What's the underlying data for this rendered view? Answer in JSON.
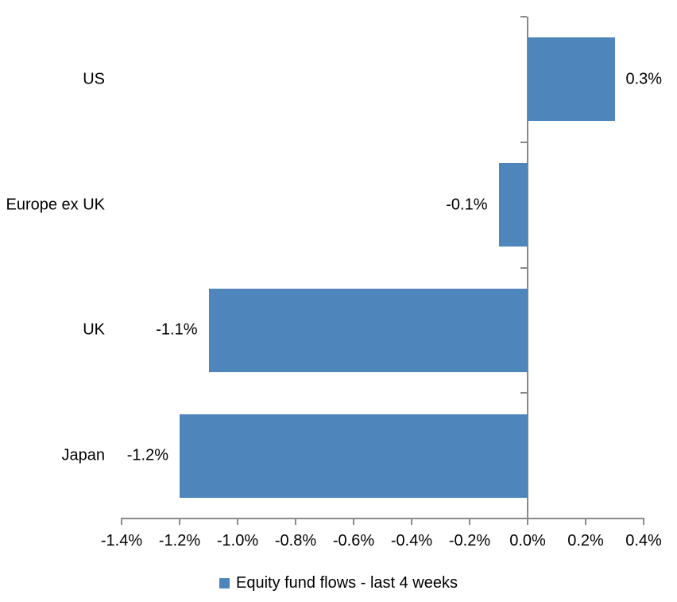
{
  "chart_data": {
    "type": "bar",
    "orientation": "horizontal",
    "title": "",
    "categories": [
      "US",
      "Europe ex UK",
      "UK",
      "Japan"
    ],
    "values": [
      0.3,
      -0.1,
      -1.1,
      -1.2
    ],
    "data_labels": [
      "0.3%",
      "-0.1%",
      "-1.1%",
      "-1.2%"
    ],
    "series_name": "Equity fund flows - last 4 weeks",
    "xlabel": "",
    "ylabel": "",
    "xlim": [
      -1.4,
      0.4
    ],
    "x_tick_step": 0.2,
    "x_tick_labels": [
      "-1.4%",
      "-1.2%",
      "-1.0%",
      "-0.8%",
      "-0.6%",
      "-0.4%",
      "-0.2%",
      "0.0%",
      "0.2%",
      "0.4%"
    ],
    "grid": false,
    "legend_position": "bottom",
    "bar_color": "#4E86BC",
    "axis_color": "#8A8A8A",
    "text_color": "#000000"
  }
}
